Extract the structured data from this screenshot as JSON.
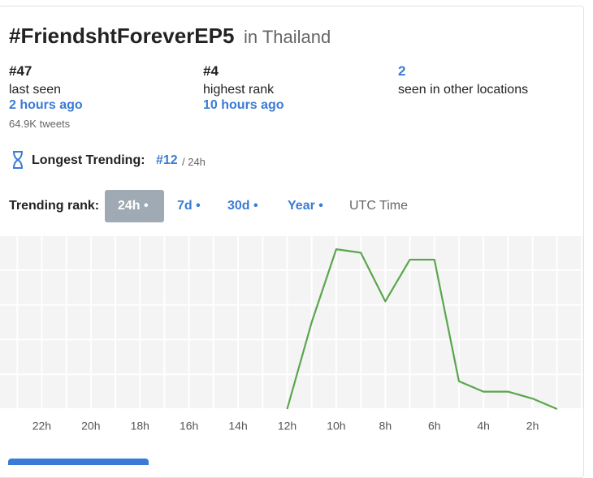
{
  "header": {
    "title": "#FriendshtForeverEP5",
    "location": "in Thailand"
  },
  "stats": [
    {
      "value": "#47",
      "label": "last seen",
      "detail": "2 hours ago",
      "note": "64.9K tweets"
    },
    {
      "value": "#4",
      "label": "highest rank",
      "detail": "10 hours ago"
    },
    {
      "value": "2",
      "label": "seen in other locations"
    }
  ],
  "longest": {
    "label": "Longest Trending:",
    "rank": "#12",
    "period": "/ 24h"
  },
  "tabs": {
    "label": "Trending rank:",
    "items": [
      "24h •",
      "7d •",
      "30d •",
      "Year •"
    ],
    "timezone": "UTC Time"
  },
  "chart_data": {
    "type": "line",
    "color": "#5aa64c",
    "x": [
      12,
      11,
      10,
      9,
      8,
      7,
      6,
      5,
      4,
      3,
      2,
      1
    ],
    "values": [
      50,
      25,
      4,
      5,
      19,
      7,
      7,
      42,
      45,
      45,
      47,
      50
    ],
    "xlim": [
      24,
      0
    ],
    "xticks": [
      {
        "value": 22,
        "label": "22h"
      },
      {
        "value": 20,
        "label": "20h"
      },
      {
        "value": 18,
        "label": "18h"
      },
      {
        "value": 16,
        "label": "16h"
      },
      {
        "value": 14,
        "label": "14h"
      },
      {
        "value": 12,
        "label": "12h"
      },
      {
        "value": 10,
        "label": "10h"
      },
      {
        "value": 8,
        "label": "8h"
      },
      {
        "value": 6,
        "label": "6h"
      },
      {
        "value": 4,
        "label": "4h"
      },
      {
        "value": 2,
        "label": "2h"
      }
    ],
    "ylim": [
      50,
      0
    ],
    "yticks": [
      0,
      10,
      20,
      30,
      40,
      50
    ],
    "grid": true
  }
}
